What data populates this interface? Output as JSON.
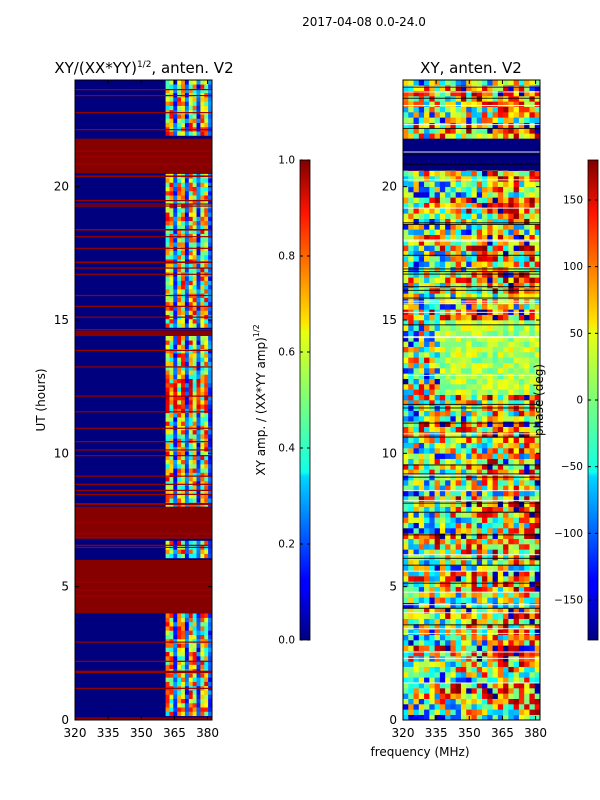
{
  "figure_title": "2017-04-08 0.0-24.0",
  "chart_data": [
    {
      "type": "heatmap",
      "title": "XY/(XX*YY)",
      "title_superscript": "1/2",
      "title_suffix": ", anten. V2",
      "xlabel": "",
      "ylabel": "UT (hours)",
      "xlim": [
        320,
        382
      ],
      "ylim": [
        0,
        24
      ],
      "xticks": [
        320,
        335,
        350,
        365,
        380
      ],
      "yticks": [
        0,
        5,
        10,
        15,
        20
      ],
      "colorbar": {
        "label": "XY amp. / (XX*YY amp)",
        "label_superscript": "1/2",
        "range": [
          0.0,
          1.0
        ],
        "ticks": [
          "0.0",
          "0.2",
          "0.4",
          "0.6",
          "0.8",
          "1.0"
        ],
        "colormap": "jet"
      },
      "saturated_time_bands_hours": [
        [
          20.5,
          21.8
        ],
        [
          14.4,
          14.6
        ],
        [
          6.8,
          8.0
        ],
        [
          4.0,
          6.0
        ],
        [
          0.0,
          0.1
        ]
      ],
      "active_frequency_band_MHz": [
        361,
        381
      ]
    },
    {
      "type": "heatmap",
      "title": "XY, anten. V2",
      "xlabel": "frequency (MHz)",
      "ylabel": "",
      "xlim": [
        320,
        382
      ],
      "ylim": [
        0,
        24
      ],
      "xticks": [
        320,
        335,
        350,
        365,
        380
      ],
      "yticks": [
        0,
        5,
        10,
        15,
        20
      ],
      "colorbar": {
        "label": "phase (deg)",
        "range": [
          -180,
          180
        ],
        "ticks": [
          "150",
          "100",
          "50",
          "0",
          "−50",
          "−100",
          "−150"
        ],
        "colormap": "jet"
      },
      "blank_time_band_hours": [
        20.6,
        21.8
      ]
    }
  ]
}
